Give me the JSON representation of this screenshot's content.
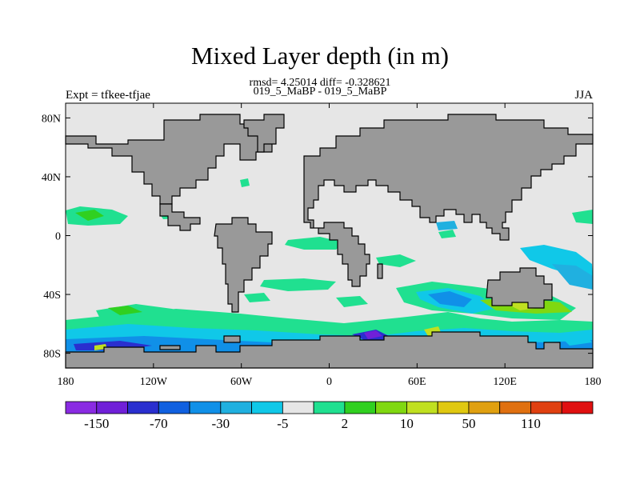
{
  "title": "Mixed Layer depth (in m)",
  "stats_line": "rmsd= 4.25014 diff= -0.328621",
  "case_line": "019_5_MaBP - 019_5_MaBP",
  "left_label": "Expt = tfkee-tfjae",
  "right_label": "JJA",
  "axes": {
    "x_ticks": [
      "180",
      "120W",
      "60W",
      "0",
      "60E",
      "120E",
      "180"
    ],
    "y_ticks": [
      "80N",
      "40N",
      "0",
      "40S",
      "80S"
    ]
  },
  "colorbar": {
    "colors": [
      "#8a2be2",
      "#7020d8",
      "#2a2fcf",
      "#1060e0",
      "#1090e8",
      "#20b0e0",
      "#10c8e8",
      "#e6e6e6",
      "#20e090",
      "#30d020",
      "#80d810",
      "#c0e020",
      "#e0c810",
      "#e0a010",
      "#e07010",
      "#e04010",
      "#e01010"
    ],
    "labels": [
      "-150",
      "-70",
      "-30",
      "-5",
      "2",
      "10",
      "50",
      "110"
    ]
  },
  "colors": {
    "ocean_background": "#e6e6e6",
    "land": "#999999"
  }
}
